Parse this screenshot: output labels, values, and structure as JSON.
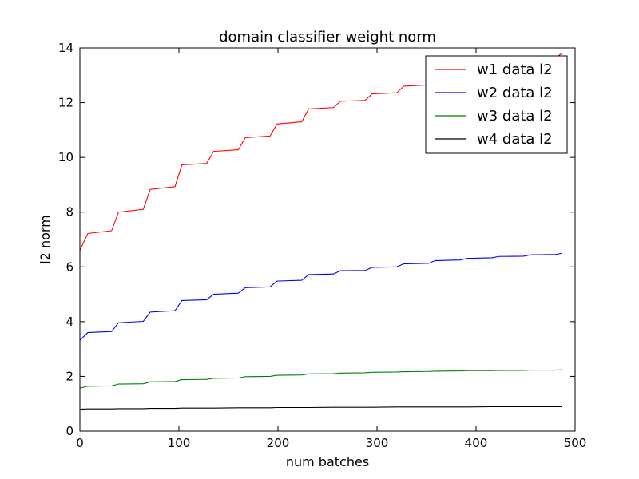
{
  "chart_data": {
    "type": "line",
    "title": "domain classifier weight norm",
    "xlabel": "num batches",
    "ylabel": "l2 norm",
    "xlim": [
      0,
      500
    ],
    "ylim": [
      0,
      14
    ],
    "xticks": [
      0,
      100,
      200,
      300,
      400,
      500
    ],
    "yticks": [
      0,
      2,
      4,
      6,
      8,
      10,
      12,
      14
    ],
    "xtick_labels": [
      "0",
      "100",
      "200",
      "300",
      "400",
      "500"
    ],
    "ytick_labels": [
      "0",
      "2",
      "4",
      "6",
      "8",
      "10",
      "12",
      "14"
    ],
    "grid": false,
    "legend_position": "top-right",
    "series": [
      {
        "name": "w1 data l2",
        "color": "#ff0000",
        "x": [
          0,
          8,
          32,
          39,
          64,
          71,
          96,
          103,
          128,
          135,
          160,
          167,
          192,
          199,
          224,
          231,
          256,
          263,
          288,
          295,
          320,
          327,
          352,
          359,
          384,
          391,
          416,
          423,
          448,
          455,
          480,
          487
        ],
        "y": [
          6.6,
          7.22,
          7.32,
          8.0,
          8.1,
          8.83,
          8.93,
          9.73,
          9.78,
          10.22,
          10.28,
          10.72,
          10.78,
          11.22,
          11.3,
          11.77,
          11.82,
          12.05,
          12.08,
          12.32,
          12.36,
          12.6,
          12.65,
          12.9,
          12.95,
          13.15,
          13.2,
          13.4,
          13.45,
          13.6,
          13.65,
          13.8
        ]
      },
      {
        "name": "w2 data l2",
        "color": "#0000ff",
        "x": [
          0,
          8,
          32,
          39,
          64,
          71,
          96,
          103,
          128,
          135,
          160,
          167,
          192,
          199,
          224,
          231,
          256,
          263,
          288,
          295,
          320,
          327,
          352,
          359,
          384,
          391,
          416,
          423,
          448,
          455,
          480,
          487
        ],
        "y": [
          3.32,
          3.6,
          3.64,
          3.96,
          4.01,
          4.35,
          4.4,
          4.77,
          4.8,
          5.0,
          5.04,
          5.24,
          5.27,
          5.48,
          5.51,
          5.72,
          5.74,
          5.86,
          5.87,
          5.98,
          6.0,
          6.11,
          6.13,
          6.23,
          6.25,
          6.31,
          6.33,
          6.38,
          6.39,
          6.44,
          6.45,
          6.5
        ]
      },
      {
        "name": "w3 data l2",
        "color": "#008000",
        "x": [
          0,
          8,
          32,
          39,
          64,
          71,
          96,
          103,
          128,
          135,
          160,
          167,
          192,
          199,
          224,
          231,
          256,
          263,
          288,
          295,
          320,
          327,
          352,
          359,
          384,
          391,
          416,
          423,
          448,
          455,
          480,
          487
        ],
        "y": [
          1.57,
          1.64,
          1.65,
          1.72,
          1.73,
          1.8,
          1.81,
          1.88,
          1.89,
          1.93,
          1.94,
          1.99,
          2.0,
          2.04,
          2.05,
          2.09,
          2.1,
          2.12,
          2.13,
          2.15,
          2.16,
          2.17,
          2.18,
          2.19,
          2.2,
          2.21,
          2.21,
          2.22,
          2.22,
          2.23,
          2.23,
          2.24
        ]
      },
      {
        "name": "w4 data l2",
        "color": "#000000",
        "x": [
          0,
          8,
          32,
          39,
          64,
          71,
          96,
          103,
          128,
          135,
          160,
          167,
          192,
          199,
          224,
          231,
          256,
          263,
          288,
          295,
          320,
          327,
          352,
          359,
          384,
          391,
          416,
          423,
          448,
          455,
          480,
          487
        ],
        "y": [
          0.8,
          0.81,
          0.81,
          0.82,
          0.82,
          0.83,
          0.83,
          0.84,
          0.84,
          0.84,
          0.85,
          0.85,
          0.85,
          0.86,
          0.86,
          0.86,
          0.87,
          0.87,
          0.87,
          0.87,
          0.88,
          0.88,
          0.88,
          0.88,
          0.88,
          0.88,
          0.89,
          0.89,
          0.89,
          0.89,
          0.89,
          0.89
        ]
      }
    ]
  }
}
